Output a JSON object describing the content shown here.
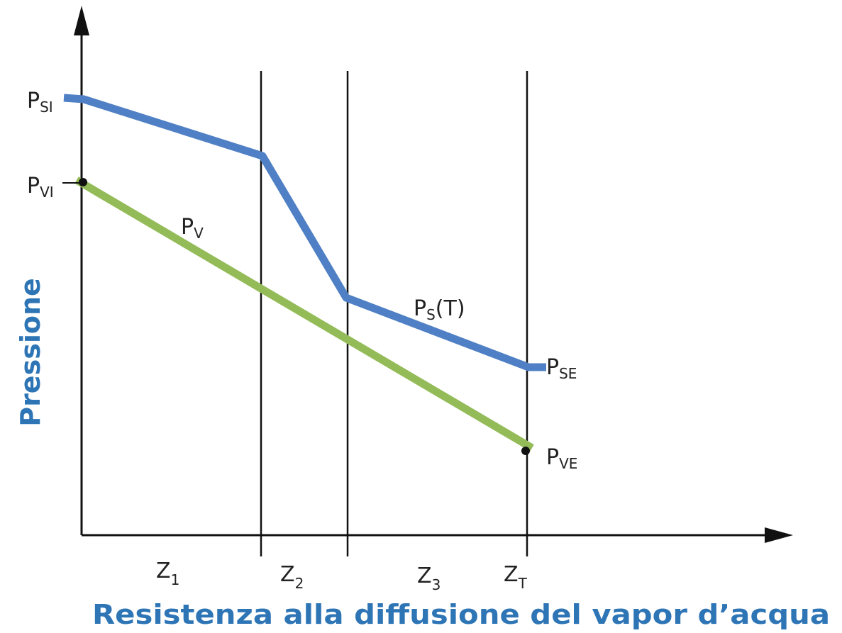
{
  "axes": {
    "y_label": "Pressione",
    "x_label": "Resistenza alla diffusione del vapor d’acqua"
  },
  "labels": [
    {
      "main": "P",
      "sub": "SI"
    },
    {
      "main": "P",
      "sub": "VI"
    },
    {
      "main": "P",
      "sub": "V"
    },
    {
      "main": "P",
      "sub": "S",
      "suffix": "(T)"
    },
    {
      "main": "P",
      "sub": "SE"
    },
    {
      "main": "P",
      "sub": "VE"
    }
  ],
  "layers": [
    {
      "main": "Z",
      "sub": "1"
    },
    {
      "main": "Z",
      "sub": "2"
    },
    {
      "main": "Z",
      "sub": "3"
    },
    {
      "main": "Z",
      "sub": "T"
    }
  ]
}
